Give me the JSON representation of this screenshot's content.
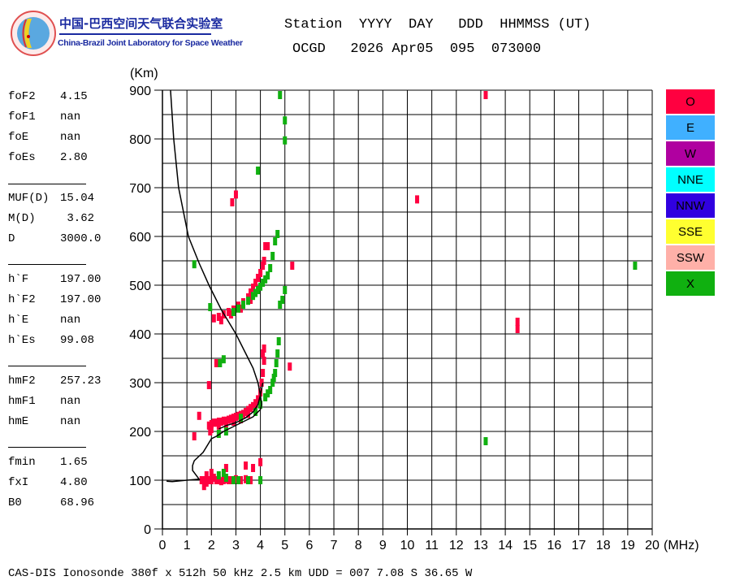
{
  "logo": {
    "title_cn": "中国-巴西空间天气联合实验室",
    "title_en": "China-Brazil Joint Laboratory for Space Weather"
  },
  "header": {
    "line1": "Station  YYYY  DAY   DDD  HHMMSS (UT)",
    "line2": "OCGD   2026 Apr05  095  073000"
  },
  "parameters": [
    {
      "name": "foF2",
      "value": "4.15"
    },
    {
      "name": "foF1",
      "value": "nan"
    },
    {
      "name": "foE",
      "value": "nan"
    },
    {
      "name": "foEs",
      "value": "2.80"
    },
    {
      "name": "MUF(D)",
      "value": "15.04"
    },
    {
      "name": "M(D)",
      "value": " 3.62"
    },
    {
      "name": "D",
      "value": "3000.0"
    },
    {
      "name": "h`F",
      "value": "197.00"
    },
    {
      "name": "h`F2",
      "value": "197.00"
    },
    {
      "name": "h`E",
      "value": "nan"
    },
    {
      "name": "h`Es",
      "value": "99.08"
    },
    {
      "name": "hmF2",
      "value": "257.23"
    },
    {
      "name": "hmF1",
      "value": "nan"
    },
    {
      "name": "hmE",
      "value": "nan"
    },
    {
      "name": "fmin",
      "value": "1.65"
    },
    {
      "name": "fxI",
      "value": "4.80"
    },
    {
      "name": "B0",
      "value": "68.96"
    }
  ],
  "legend": [
    {
      "label": "O",
      "color": "#ff0040"
    },
    {
      "label": "E",
      "color": "#40b0ff"
    },
    {
      "label": "W",
      "color": "#b000a0"
    },
    {
      "label": "NNE",
      "color": "#00ffff"
    },
    {
      "label": "NNW",
      "color": "#3000e0"
    },
    {
      "label": "SSE",
      "color": "#ffff30"
    },
    {
      "label": "SSW",
      "color": "#ffb0a8"
    },
    {
      "label": "X",
      "color": "#10b010"
    }
  ],
  "footer": "CAS-DIS Ionosonde 380f x 512h 50 kHz 2.5 km UDD = 007 7.08 S 36.65 W",
  "chart_data": {
    "type": "scatter",
    "title": "",
    "xlabel": "(MHz)",
    "ylabel": "(Km)",
    "xlim": [
      0,
      20
    ],
    "ylim": [
      0,
      900
    ],
    "xticks": [
      "0",
      "1",
      "2",
      "3",
      "4",
      "5",
      "6",
      "7",
      "8",
      "9",
      "10",
      "11",
      "12",
      "13",
      "14",
      "15",
      "16",
      "17",
      "18",
      "19",
      "20"
    ],
    "yticks": [
      "0",
      "100",
      "200",
      "300",
      "400",
      "500",
      "600",
      "700",
      "800",
      "900"
    ],
    "grid": true,
    "series": [
      {
        "name": "O",
        "color": "#ff0040",
        "points": [
          [
            1.9,
            212
          ],
          [
            2.0,
            215
          ],
          [
            2.1,
            218
          ],
          [
            2.2,
            218
          ],
          [
            2.3,
            220
          ],
          [
            2.4,
            220
          ],
          [
            2.5,
            222
          ],
          [
            2.6,
            222
          ],
          [
            2.7,
            224
          ],
          [
            2.8,
            226
          ],
          [
            2.9,
            228
          ],
          [
            3.0,
            230
          ],
          [
            3.1,
            232
          ],
          [
            3.2,
            234
          ],
          [
            3.3,
            236
          ],
          [
            3.4,
            240
          ],
          [
            3.5,
            244
          ],
          [
            3.6,
            248
          ],
          [
            3.7,
            252
          ],
          [
            3.8,
            258
          ],
          [
            3.9,
            266
          ],
          [
            4.0,
            280
          ],
          [
            4.05,
            300
          ],
          [
            4.1,
            320
          ],
          [
            4.15,
            345
          ],
          [
            4.15,
            370
          ],
          [
            2.0,
            205
          ],
          [
            2.3,
            212
          ],
          [
            2.6,
            214
          ],
          [
            2.9,
            220
          ],
          [
            3.2,
            225
          ],
          [
            3.5,
            236
          ],
          [
            3.8,
            248
          ],
          [
            1.95,
            200
          ],
          [
            2.1,
            432
          ],
          [
            2.3,
            435
          ],
          [
            2.5,
            440
          ],
          [
            2.7,
            445
          ],
          [
            2.9,
            450
          ],
          [
            3.1,
            458
          ],
          [
            3.3,
            465
          ],
          [
            3.5,
            475
          ],
          [
            3.6,
            485
          ],
          [
            3.7,
            495
          ],
          [
            3.8,
            505
          ],
          [
            3.9,
            515
          ],
          [
            4.0,
            525
          ],
          [
            4.1,
            540
          ],
          [
            4.15,
            550
          ],
          [
            4.2,
            580
          ],
          [
            4.3,
            580
          ],
          [
            2.4,
            428
          ],
          [
            2.8,
            440
          ],
          [
            3.2,
            452
          ],
          [
            3.6,
            470
          ],
          [
            1.6,
            100
          ],
          [
            1.7,
            100
          ],
          [
            1.8,
            95
          ],
          [
            1.9,
            100
          ],
          [
            2.0,
            100
          ],
          [
            2.1,
            105
          ],
          [
            2.2,
            100
          ],
          [
            2.3,
            100
          ],
          [
            2.4,
            98
          ],
          [
            2.5,
            100
          ],
          [
            2.6,
            102
          ],
          [
            2.7,
            100
          ],
          [
            2.8,
            100
          ],
          [
            2.9,
            100
          ],
          [
            3.0,
            102
          ],
          [
            3.2,
            100
          ],
          [
            3.4,
            102
          ],
          [
            3.6,
            100
          ],
          [
            1.7,
            88
          ],
          [
            2.0,
            115
          ],
          [
            1.8,
            110
          ],
          [
            3.0,
            686
          ],
          [
            2.85,
            670
          ],
          [
            10.4,
            676
          ],
          [
            13.2,
            890
          ],
          [
            14.5,
            425
          ],
          [
            14.5,
            410
          ],
          [
            5.3,
            540
          ],
          [
            5.2,
            333
          ],
          [
            1.9,
            295
          ],
          [
            1.3,
            190
          ],
          [
            1.5,
            232
          ],
          [
            4.0,
            137
          ],
          [
            3.4,
            130
          ],
          [
            3.7,
            125
          ],
          [
            2.6,
            125
          ],
          [
            2.2,
            340
          ],
          [
            4.1,
            360
          ]
        ]
      },
      {
        "name": "X",
        "color": "#10b010",
        "points": [
          [
            2.3,
            195
          ],
          [
            2.6,
            200
          ],
          [
            3.2,
            228
          ],
          [
            3.8,
            240
          ],
          [
            4.0,
            255
          ],
          [
            4.2,
            270
          ],
          [
            4.3,
            278
          ],
          [
            4.4,
            285
          ],
          [
            4.5,
            300
          ],
          [
            4.55,
            310
          ],
          [
            4.6,
            320
          ],
          [
            4.65,
            340
          ],
          [
            4.7,
            360
          ],
          [
            4.75,
            385
          ],
          [
            2.9,
            445
          ],
          [
            3.1,
            452
          ],
          [
            3.3,
            460
          ],
          [
            3.5,
            468
          ],
          [
            3.7,
            478
          ],
          [
            3.8,
            484
          ],
          [
            3.9,
            490
          ],
          [
            4.0,
            497
          ],
          [
            4.1,
            505
          ],
          [
            4.2,
            512
          ],
          [
            4.3,
            520
          ],
          [
            4.4,
            535
          ],
          [
            4.5,
            560
          ],
          [
            4.6,
            590
          ],
          [
            4.7,
            605
          ],
          [
            2.3,
            110
          ],
          [
            2.5,
            115
          ],
          [
            2.9,
            100
          ],
          [
            3.1,
            100
          ],
          [
            3.5,
            100
          ],
          [
            4.0,
            100
          ],
          [
            2.6,
            105
          ],
          [
            4.8,
            890
          ],
          [
            5.0,
            838
          ],
          [
            5.0,
            797
          ],
          [
            3.9,
            735
          ],
          [
            1.3,
            543
          ],
          [
            1.95,
            455
          ],
          [
            2.5,
            348
          ],
          [
            2.35,
            340
          ],
          [
            19.3,
            540
          ],
          [
            13.2,
            180
          ],
          [
            4.9,
            470
          ],
          [
            5.0,
            490
          ],
          [
            4.8,
            460
          ]
        ]
      }
    ],
    "profile_curves": [
      [
        [
          0.33,
          900
        ],
        [
          0.46,
          800
        ],
        [
          0.66,
          700
        ],
        [
          1.06,
          600
        ],
        [
          1.5,
          545
        ],
        [
          1.9,
          500
        ],
        [
          2.4,
          450
        ],
        [
          3.0,
          400
        ],
        [
          3.4,
          360
        ],
        [
          3.7,
          330
        ],
        [
          3.9,
          300
        ],
        [
          4.0,
          275
        ],
        [
          4.05,
          255
        ],
        [
          4.0,
          245
        ],
        [
          3.7,
          230
        ],
        [
          3.3,
          220
        ],
        [
          2.9,
          210
        ],
        [
          2.5,
          200
        ],
        [
          2.2,
          190
        ],
        [
          2.0,
          185
        ],
        [
          1.66,
          157
        ],
        [
          1.3,
          140
        ],
        [
          1.23,
          130
        ],
        [
          1.23,
          120
        ],
        [
          1.5,
          102
        ],
        [
          1.0,
          100
        ],
        [
          0.4,
          97
        ],
        [
          0.17,
          98
        ]
      ],
      [
        [
          2.3,
          205
        ],
        [
          2.6,
          212
        ],
        [
          3.0,
          218
        ],
        [
          3.4,
          228
        ],
        [
          3.7,
          240
        ],
        [
          3.9,
          255
        ],
        [
          4.0,
          275
        ],
        [
          4.1,
          300
        ]
      ]
    ]
  }
}
